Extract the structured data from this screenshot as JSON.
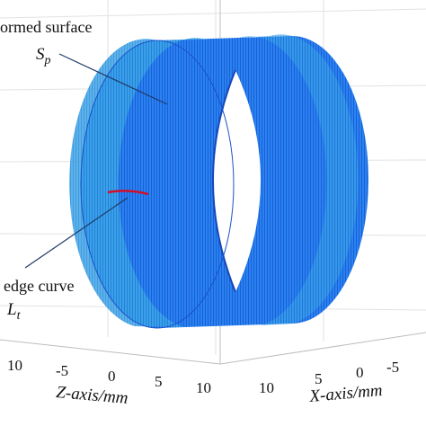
{
  "annotations": {
    "surface_label": "ormed surface",
    "surface_symbol": "S",
    "surface_subscript": "p",
    "curve_label": "edge curve",
    "curve_symbol": "L",
    "curve_subscript": "t"
  },
  "z_axis": {
    "label": "Z-axis/mm",
    "ticks": [
      "10",
      "-5",
      "0",
      "5",
      "10"
    ]
  },
  "x_axis": {
    "label": "X-axis/mm",
    "ticks": [
      "10",
      "5",
      "0",
      "-5"
    ]
  }
}
